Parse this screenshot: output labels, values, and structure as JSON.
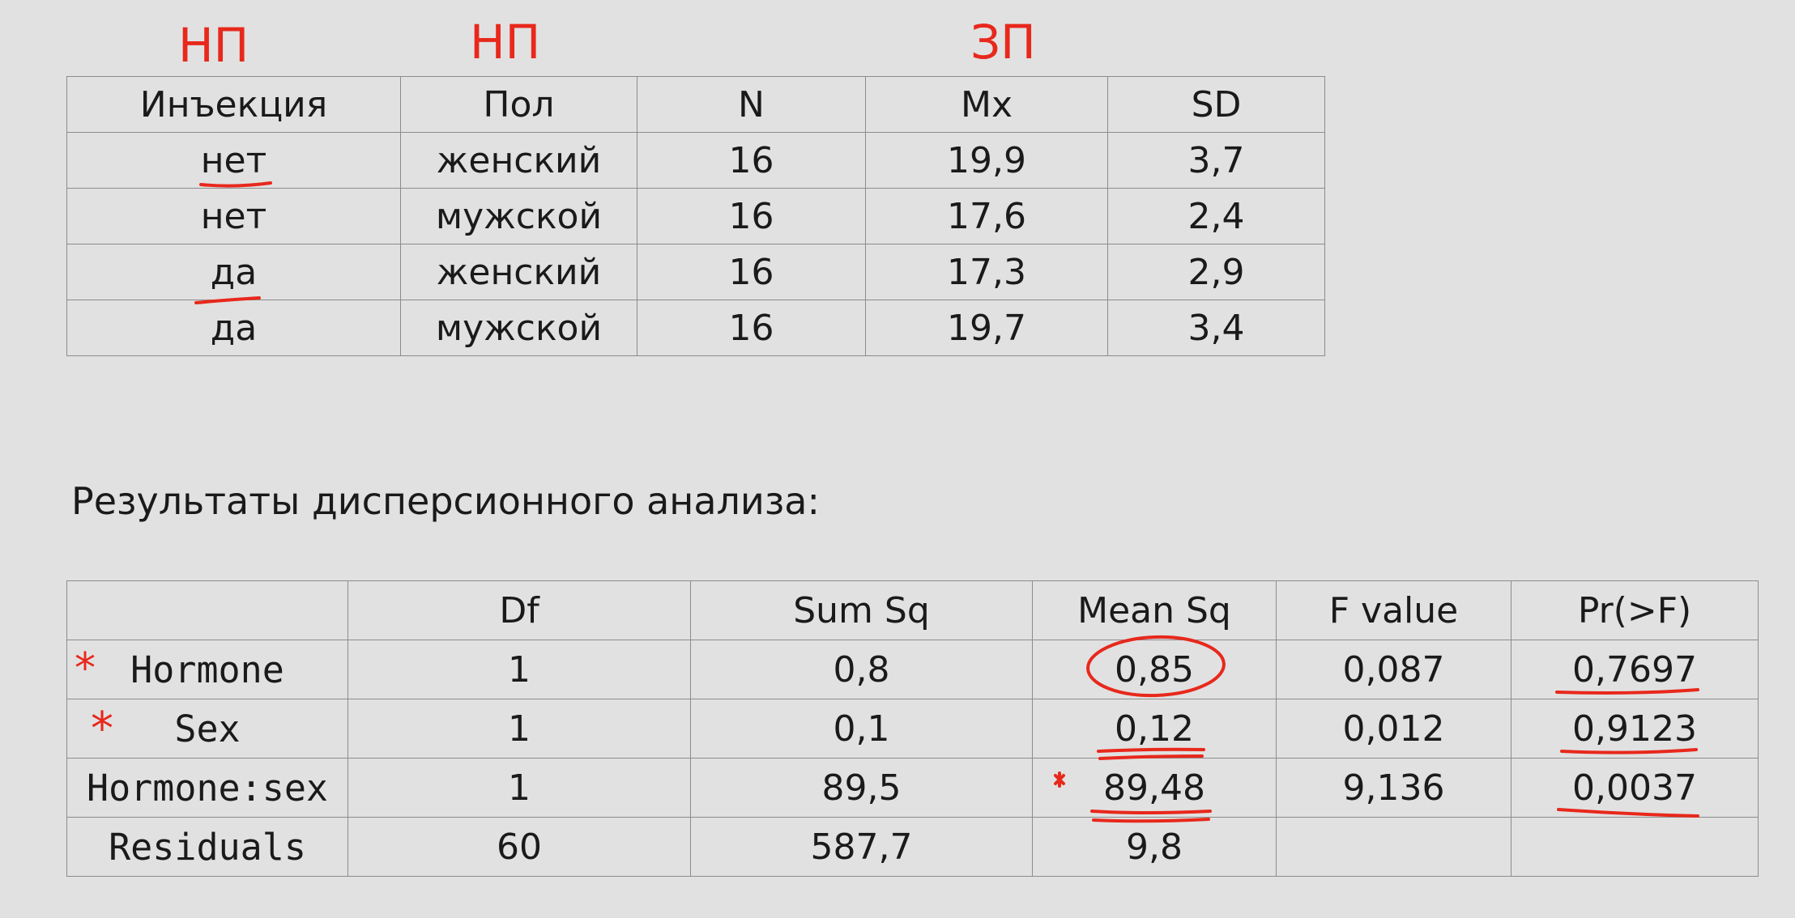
{
  "annotations": {
    "col1_tag": "НП",
    "col2_tag": "НП",
    "col4_tag": "ЗП",
    "asterisk": "*"
  },
  "groups_table": {
    "headers": [
      "Инъекция",
      "Пол",
      "N",
      "Mx",
      "SD"
    ],
    "rows": [
      [
        "нет",
        "женский",
        "16",
        "19,9",
        "3,7"
      ],
      [
        "нет",
        "мужской",
        "16",
        "17,6",
        "2,4"
      ],
      [
        "да",
        "женский",
        "16",
        "17,3",
        "2,9"
      ],
      [
        "да",
        "мужской",
        "16",
        "19,7",
        "3,4"
      ]
    ]
  },
  "section_title": "Результаты дисперсионного анализа:",
  "anova_table": {
    "headers": [
      "",
      "Df",
      "Sum Sq",
      "Mean Sq",
      "F value",
      "Pr(>F)"
    ],
    "rows": [
      [
        "Hormone",
        "1",
        "0,8",
        "0,85",
        "0,087",
        "0,7697"
      ],
      [
        "Sex",
        "1",
        "0,1",
        "0,12",
        "0,012",
        "0,9123"
      ],
      [
        "Hormone:sex",
        "1",
        "89,5",
        "89,48",
        "9,136",
        "0,0037"
      ],
      [
        "Residuals",
        "60",
        "587,7",
        "9,8",
        "",
        ""
      ]
    ]
  },
  "colors": {
    "annotation_red": "#e8281c",
    "background": "#e1e1e1"
  }
}
